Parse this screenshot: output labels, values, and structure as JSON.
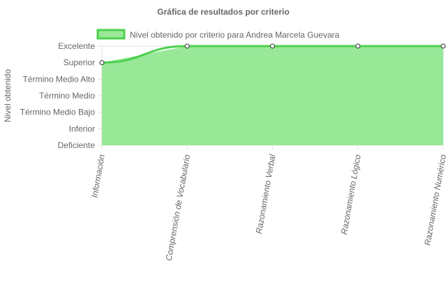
{
  "chart_data": {
    "type": "area",
    "title": "Gráfica de resultados por criterio",
    "ylabel": "Nivel obtenido",
    "xlabel": "",
    "levels": [
      "Deficiente",
      "Inferior",
      "Término Medio Bajo",
      "Término Medio",
      "Término Medio Alto",
      "Superior",
      "Excelente"
    ],
    "categories": [
      "Información",
      "Comprensión de Vocabulario",
      "Razonamiento Verbal",
      "Razonamiento Lógico",
      "Razonamiento Numérico"
    ],
    "series": [
      {
        "name": "Nivel obtenido por criterio para Andrea Marcela Guevara",
        "values": [
          "Superior",
          "Excelente",
          "Excelente",
          "Excelente",
          "Excelente"
        ]
      }
    ],
    "legend_position": "top",
    "grid": true,
    "colors": {
      "fill": "#98e898",
      "line": "#4cd04c",
      "grid": "#e0e0e0",
      "point_fill": "#ffffff",
      "point_stroke": "#333333"
    }
  }
}
